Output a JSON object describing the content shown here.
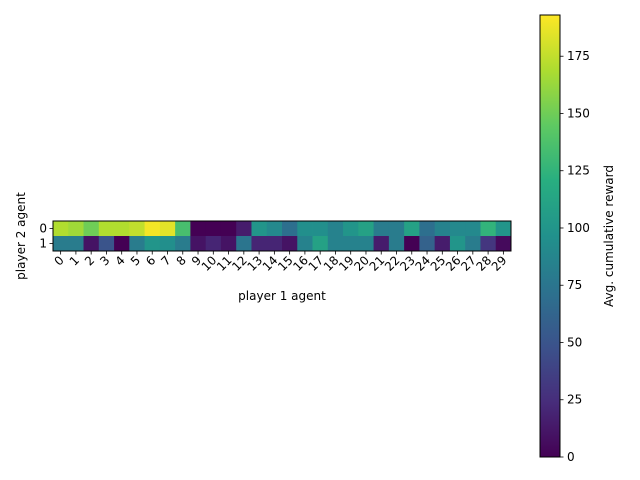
{
  "chart_data": {
    "type": "heatmap",
    "title": "",
    "xlabel": "player 1 agent",
    "ylabel": "player 2 agent",
    "x_categories": [
      "0",
      "1",
      "2",
      "3",
      "4",
      "5",
      "6",
      "7",
      "8",
      "9",
      "10",
      "11",
      "12",
      "13",
      "14",
      "15",
      "16",
      "17",
      "18",
      "19",
      "20",
      "21",
      "22",
      "23",
      "24",
      "25",
      "26",
      "27",
      "28",
      "29"
    ],
    "y_categories": [
      "0",
      "1"
    ],
    "values": [
      [
        170,
        165,
        150,
        170,
        170,
        175,
        190,
        185,
        135,
        0,
        0,
        0,
        15,
        100,
        90,
        70,
        95,
        95,
        85,
        100,
        110,
        80,
        80,
        110,
        70,
        85,
        90,
        90,
        125,
        100
      ],
      [
        80,
        80,
        10,
        50,
        0,
        80,
        100,
        95,
        80,
        10,
        20,
        10,
        75,
        20,
        20,
        10,
        85,
        110,
        85,
        85,
        85,
        15,
        80,
        0,
        60,
        15,
        100,
        80,
        30,
        5
      ]
    ],
    "colormap": "viridis",
    "vmin": 0,
    "vmax": 193,
    "colorbar": {
      "label": "Avg. cumulative reward",
      "ticks": [
        0,
        25,
        50,
        75,
        100,
        125,
        150,
        175
      ]
    }
  }
}
